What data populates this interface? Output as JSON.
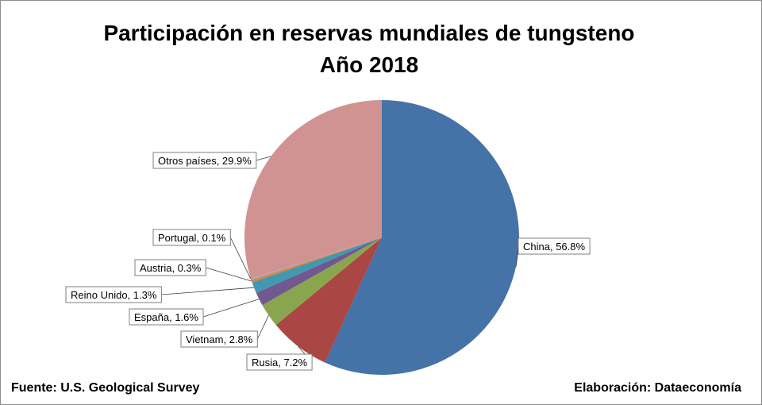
{
  "chart_data": {
    "type": "pie",
    "title": "Participación en reservas mundiales de tungsteno",
    "subtitle": "Año 2018",
    "slices": [
      {
        "label": "China",
        "value": 56.8,
        "text": "China, 56.8%",
        "color": "#4572a7"
      },
      {
        "label": "Rusia",
        "value": 7.2,
        "text": "Rusia, 7.2%",
        "color": "#aa4643"
      },
      {
        "label": "Vietnam",
        "value": 2.8,
        "text": "Vietnam, 2.8%",
        "color": "#89a54e"
      },
      {
        "label": "España",
        "value": 1.6,
        "text": "España, 1.6%",
        "color": "#71588f"
      },
      {
        "label": "Reino Unido",
        "value": 1.3,
        "text": "Reino Unido, 1.3%",
        "color": "#4198af"
      },
      {
        "label": "Austria",
        "value": 0.3,
        "text": "Austria, 0.3%",
        "color": "#db843d"
      },
      {
        "label": "Portugal",
        "value": 0.1,
        "text": "Portugal, 0.1%",
        "color": "#93a9cf"
      },
      {
        "label": "Otros países",
        "value": 29.9,
        "text": "Otros países, 29.9%",
        "color": "#d19392"
      }
    ],
    "legend": "none"
  },
  "footer": {
    "source": "Fuente: U.S. Geological Survey",
    "credit": "Elaboración: Dataeconomía"
  }
}
